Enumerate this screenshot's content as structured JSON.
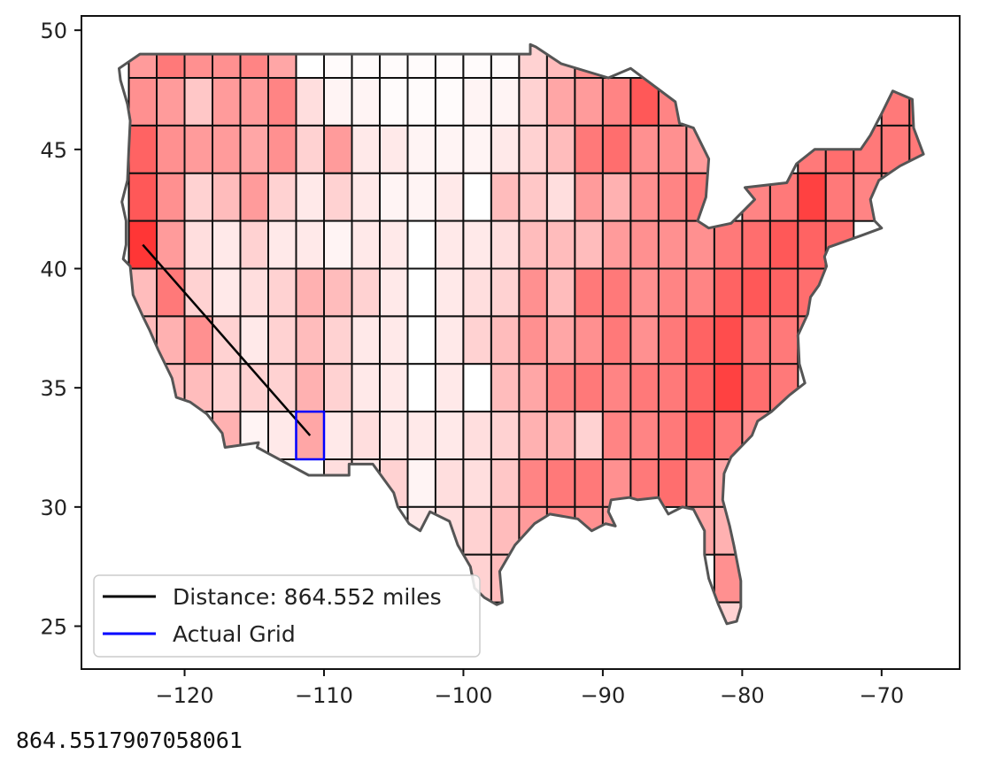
{
  "chart_data": {
    "type": "map",
    "x_ticks": [
      -120,
      -110,
      -100,
      -90,
      -80,
      -70
    ],
    "x_tick_labels": [
      "−120",
      "−110",
      "−100",
      "−90",
      "−80",
      "−70"
    ],
    "y_ticks": [
      25,
      30,
      35,
      40,
      45,
      50
    ],
    "y_tick_labels": [
      "25",
      "30",
      "35",
      "40",
      "45",
      "50"
    ],
    "xlim": [
      -127.4,
      -64.4
    ],
    "ylim": [
      23.2,
      50.6
    ],
    "grid_cell_size_deg": 2,
    "grid_intensity_scale": "0 (white) to 1 (red)",
    "grid_rows": [
      {
        "lat_min": 48,
        "lat_max": 50,
        "cells": [
          [
            -124,
            0.45
          ],
          [
            -122,
            0.6
          ],
          [
            -120,
            0.5
          ],
          [
            -118,
            0.5
          ],
          [
            -116,
            0.55
          ],
          [
            -114,
            0.4
          ],
          [
            -112,
            0.0
          ],
          [
            -110,
            0.02
          ],
          [
            -108,
            0.02
          ],
          [
            -106,
            0.02
          ],
          [
            -104,
            0.02
          ],
          [
            -102,
            0.02
          ],
          [
            -100,
            0.02
          ],
          [
            -98,
            0.02
          ],
          [
            -96,
            0.2
          ],
          [
            -94,
            0.3
          ],
          [
            -92,
            0.5
          ]
        ]
      },
      {
        "lat_min": 46,
        "lat_max": 48,
        "cells": [
          [
            -124,
            0.5
          ],
          [
            -122,
            0.45
          ],
          [
            -120,
            0.25
          ],
          [
            -118,
            0.45
          ],
          [
            -116,
            0.45
          ],
          [
            -114,
            0.55
          ],
          [
            -112,
            0.15
          ],
          [
            -110,
            0.05
          ],
          [
            -108,
            0.05
          ],
          [
            -106,
            0.02
          ],
          [
            -104,
            0.02
          ],
          [
            -102,
            0.02
          ],
          [
            -100,
            0.05
          ],
          [
            -98,
            0.05
          ],
          [
            -96,
            0.2
          ],
          [
            -94,
            0.4
          ],
          [
            -92,
            0.45
          ],
          [
            -90,
            0.55
          ],
          [
            -88,
            0.75
          ],
          [
            -86,
            0.55
          ],
          [
            -84,
            0.5
          ],
          [
            -70,
            0.6
          ],
          [
            -68,
            0.7
          ]
        ]
      },
      {
        "lat_min": 44,
        "lat_max": 46,
        "cells": [
          [
            -124,
            0.7
          ],
          [
            -122,
            0.5
          ],
          [
            -120,
            0.45
          ],
          [
            -118,
            0.45
          ],
          [
            -116,
            0.4
          ],
          [
            -114,
            0.5
          ],
          [
            -112,
            0.2
          ],
          [
            -110,
            0.45
          ],
          [
            -108,
            0.1
          ],
          [
            -106,
            0.1
          ],
          [
            -104,
            0.05
          ],
          [
            -102,
            0.05
          ],
          [
            -100,
            0.05
          ],
          [
            -98,
            0.1
          ],
          [
            -96,
            0.2
          ],
          [
            -94,
            0.3
          ],
          [
            -92,
            0.6
          ],
          [
            -90,
            0.65
          ],
          [
            -88,
            0.5
          ],
          [
            -86,
            0.5
          ],
          [
            -84,
            0.45
          ],
          [
            -76,
            0.6
          ],
          [
            -74,
            0.65
          ],
          [
            -72,
            0.6
          ],
          [
            -70,
            0.6
          ],
          [
            -68,
            0.6
          ]
        ]
      },
      {
        "lat_min": 42,
        "lat_max": 44,
        "cells": [
          [
            -124,
            0.75
          ],
          [
            -122,
            0.5
          ],
          [
            -120,
            0.2
          ],
          [
            -118,
            0.3
          ],
          [
            -116,
            0.45
          ],
          [
            -114,
            0.2
          ],
          [
            -112,
            0.1
          ],
          [
            -110,
            0.2
          ],
          [
            -108,
            0.1
          ],
          [
            -106,
            0.05
          ],
          [
            -104,
            0.05
          ],
          [
            -102,
            0.1
          ],
          [
            -100,
            0.0
          ],
          [
            -98,
            0.3
          ],
          [
            -96,
            0.25
          ],
          [
            -94,
            0.15
          ],
          [
            -92,
            0.45
          ],
          [
            -90,
            0.35
          ],
          [
            -88,
            0.5
          ],
          [
            -86,
            0.55
          ],
          [
            -84,
            0.6
          ],
          [
            -80,
            0.55
          ],
          [
            -78,
            0.6
          ],
          [
            -76,
            0.85
          ],
          [
            -74,
            0.6
          ],
          [
            -72,
            0.55
          ],
          [
            -70,
            0.5
          ]
        ]
      },
      {
        "lat_min": 40,
        "lat_max": 42,
        "cells": [
          [
            -124,
            0.9
          ],
          [
            -122,
            0.45
          ],
          [
            -120,
            0.15
          ],
          [
            -118,
            0.1
          ],
          [
            -116,
            0.2
          ],
          [
            -114,
            0.1
          ],
          [
            -112,
            0.1
          ],
          [
            -110,
            0.05
          ],
          [
            -108,
            0.1
          ],
          [
            -106,
            0.1
          ],
          [
            -104,
            0.0
          ],
          [
            -102,
            0.1
          ],
          [
            -100,
            0.1
          ],
          [
            -98,
            0.15
          ],
          [
            -96,
            0.3
          ],
          [
            -94,
            0.3
          ],
          [
            -92,
            0.3
          ],
          [
            -90,
            0.45
          ],
          [
            -88,
            0.5
          ],
          [
            -86,
            0.5
          ],
          [
            -84,
            0.5
          ],
          [
            -82,
            0.6
          ],
          [
            -80,
            0.65
          ],
          [
            -78,
            0.75
          ],
          [
            -76,
            0.7
          ],
          [
            -74,
            0.65
          ]
        ]
      },
      {
        "lat_min": 38,
        "lat_max": 40,
        "cells": [
          [
            -124,
            0.3
          ],
          [
            -122,
            0.6
          ],
          [
            -120,
            0.2
          ],
          [
            -118,
            0.1
          ],
          [
            -116,
            0.15
          ],
          [
            -114,
            0.2
          ],
          [
            -112,
            0.35
          ],
          [
            -110,
            0.3
          ],
          [
            -108,
            0.2
          ],
          [
            -106,
            0.1
          ],
          [
            -104,
            0.0
          ],
          [
            -102,
            0.1
          ],
          [
            -100,
            0.15
          ],
          [
            -98,
            0.2
          ],
          [
            -96,
            0.5
          ],
          [
            -94,
            0.3
          ],
          [
            -92,
            0.6
          ],
          [
            -90,
            0.6
          ],
          [
            -88,
            0.5
          ],
          [
            -86,
            0.55
          ],
          [
            -84,
            0.55
          ],
          [
            -82,
            0.7
          ],
          [
            -80,
            0.75
          ],
          [
            -78,
            0.7
          ],
          [
            -76,
            0.65
          ]
        ]
      },
      {
        "lat_min": 36,
        "lat_max": 38,
        "cells": [
          [
            -124,
            0.3
          ],
          [
            -122,
            0.35
          ],
          [
            -120,
            0.5
          ],
          [
            -118,
            0.2
          ],
          [
            -116,
            0.1
          ],
          [
            -114,
            0.2
          ],
          [
            -112,
            0.3
          ],
          [
            -110,
            0.2
          ],
          [
            -108,
            0.1
          ],
          [
            -106,
            0.1
          ],
          [
            -104,
            0.0
          ],
          [
            -102,
            0.1
          ],
          [
            -100,
            0.2
          ],
          [
            -98,
            0.3
          ],
          [
            -96,
            0.5
          ],
          [
            -94,
            0.4
          ],
          [
            -92,
            0.5
          ],
          [
            -90,
            0.6
          ],
          [
            -88,
            0.5
          ],
          [
            -86,
            0.6
          ],
          [
            -84,
            0.7
          ],
          [
            -82,
            0.8
          ],
          [
            -80,
            0.6
          ],
          [
            -78,
            0.6
          ],
          [
            -76,
            0.55
          ]
        ]
      },
      {
        "lat_min": 34,
        "lat_max": 36,
        "cells": [
          [
            -122,
            0.3
          ],
          [
            -120,
            0.3
          ],
          [
            -118,
            0.2
          ],
          [
            -116,
            0.2
          ],
          [
            -114,
            0.2
          ],
          [
            -112,
            0.35
          ],
          [
            -110,
            0.2
          ],
          [
            -108,
            0.1
          ],
          [
            -106,
            0.1
          ],
          [
            -104,
            0.0
          ],
          [
            -102,
            0.1
          ],
          [
            -100,
            0.0
          ],
          [
            -98,
            0.3
          ],
          [
            -96,
            0.4
          ],
          [
            -94,
            0.55
          ],
          [
            -92,
            0.6
          ],
          [
            -90,
            0.55
          ],
          [
            -88,
            0.6
          ],
          [
            -86,
            0.6
          ],
          [
            -84,
            0.7
          ],
          [
            -82,
            0.85
          ],
          [
            -80,
            0.65
          ],
          [
            -78,
            0.6
          ]
        ]
      },
      {
        "lat_min": 32,
        "lat_max": 34,
        "cells": [
          [
            -118,
            0.35
          ],
          [
            -116,
            0.05
          ],
          [
            -114,
            0.1
          ],
          [
            -112,
            0.4
          ],
          [
            -110,
            0.1
          ],
          [
            -108,
            0.15
          ],
          [
            -106,
            0.1
          ],
          [
            -104,
            0.1
          ],
          [
            -102,
            0.1
          ],
          [
            -100,
            0.15
          ],
          [
            -98,
            0.2
          ],
          [
            -96,
            0.35
          ],
          [
            -94,
            0.35
          ],
          [
            -92,
            0.2
          ],
          [
            -90,
            0.55
          ],
          [
            -88,
            0.55
          ],
          [
            -86,
            0.6
          ],
          [
            -84,
            0.7
          ],
          [
            -82,
            0.6
          ],
          [
            -80,
            0.5
          ]
        ]
      },
      {
        "lat_min": 30,
        "lat_max": 32,
        "cells": [
          [
            -110,
            0.15
          ],
          [
            -108,
            0.1
          ],
          [
            -106,
            0.2
          ],
          [
            -104,
            0.05
          ],
          [
            -102,
            0.15
          ],
          [
            -100,
            0.15
          ],
          [
            -98,
            0.25
          ],
          [
            -96,
            0.55
          ],
          [
            -94,
            0.6
          ],
          [
            -92,
            0.6
          ],
          [
            -90,
            0.5
          ],
          [
            -88,
            0.6
          ],
          [
            -86,
            0.65
          ],
          [
            -84,
            0.55
          ],
          [
            -82,
            0.4
          ]
        ]
      },
      {
        "lat_min": 28,
        "lat_max": 30,
        "cells": [
          [
            -104,
            0.1
          ],
          [
            -102,
            0.15
          ],
          [
            -100,
            0.2
          ],
          [
            -98,
            0.3
          ],
          [
            -96,
            0.45
          ],
          [
            -94,
            0.55
          ],
          [
            -92,
            0.5
          ],
          [
            -90,
            0.45
          ],
          [
            -84,
            0.4
          ],
          [
            -82,
            0.35
          ]
        ]
      },
      {
        "lat_min": 26,
        "lat_max": 28,
        "cells": [
          [
            -100,
            0.2
          ],
          [
            -98,
            0.3
          ],
          [
            -82,
            0.5
          ],
          [
            -80,
            0.35
          ]
        ]
      },
      {
        "lat_min": 24,
        "lat_max": 26,
        "cells": [
          [
            -82,
            0.2
          ],
          [
            -80,
            0.2
          ]
        ]
      }
    ],
    "distance_line": {
      "start": [
        -123,
        41
      ],
      "end": [
        -111,
        33
      ],
      "color": "#000000"
    },
    "actual_grid": {
      "lon_min": -112,
      "lon_max": -110,
      "lat_min": 32,
      "lat_max": 34,
      "color": "#0000ff"
    },
    "legend": {
      "placement": "lower-left",
      "entries": [
        {
          "label": "Distance: 864.552 miles",
          "color": "#000000"
        },
        {
          "label": "Actual Grid",
          "color": "#0000ff"
        }
      ]
    },
    "colors": {
      "cell_max": "#ff2020",
      "cell_min": "#ffffff",
      "outline": "#555555",
      "grid_line": "#111111"
    }
  },
  "output": {
    "distance_value": "864.5517907058061"
  }
}
